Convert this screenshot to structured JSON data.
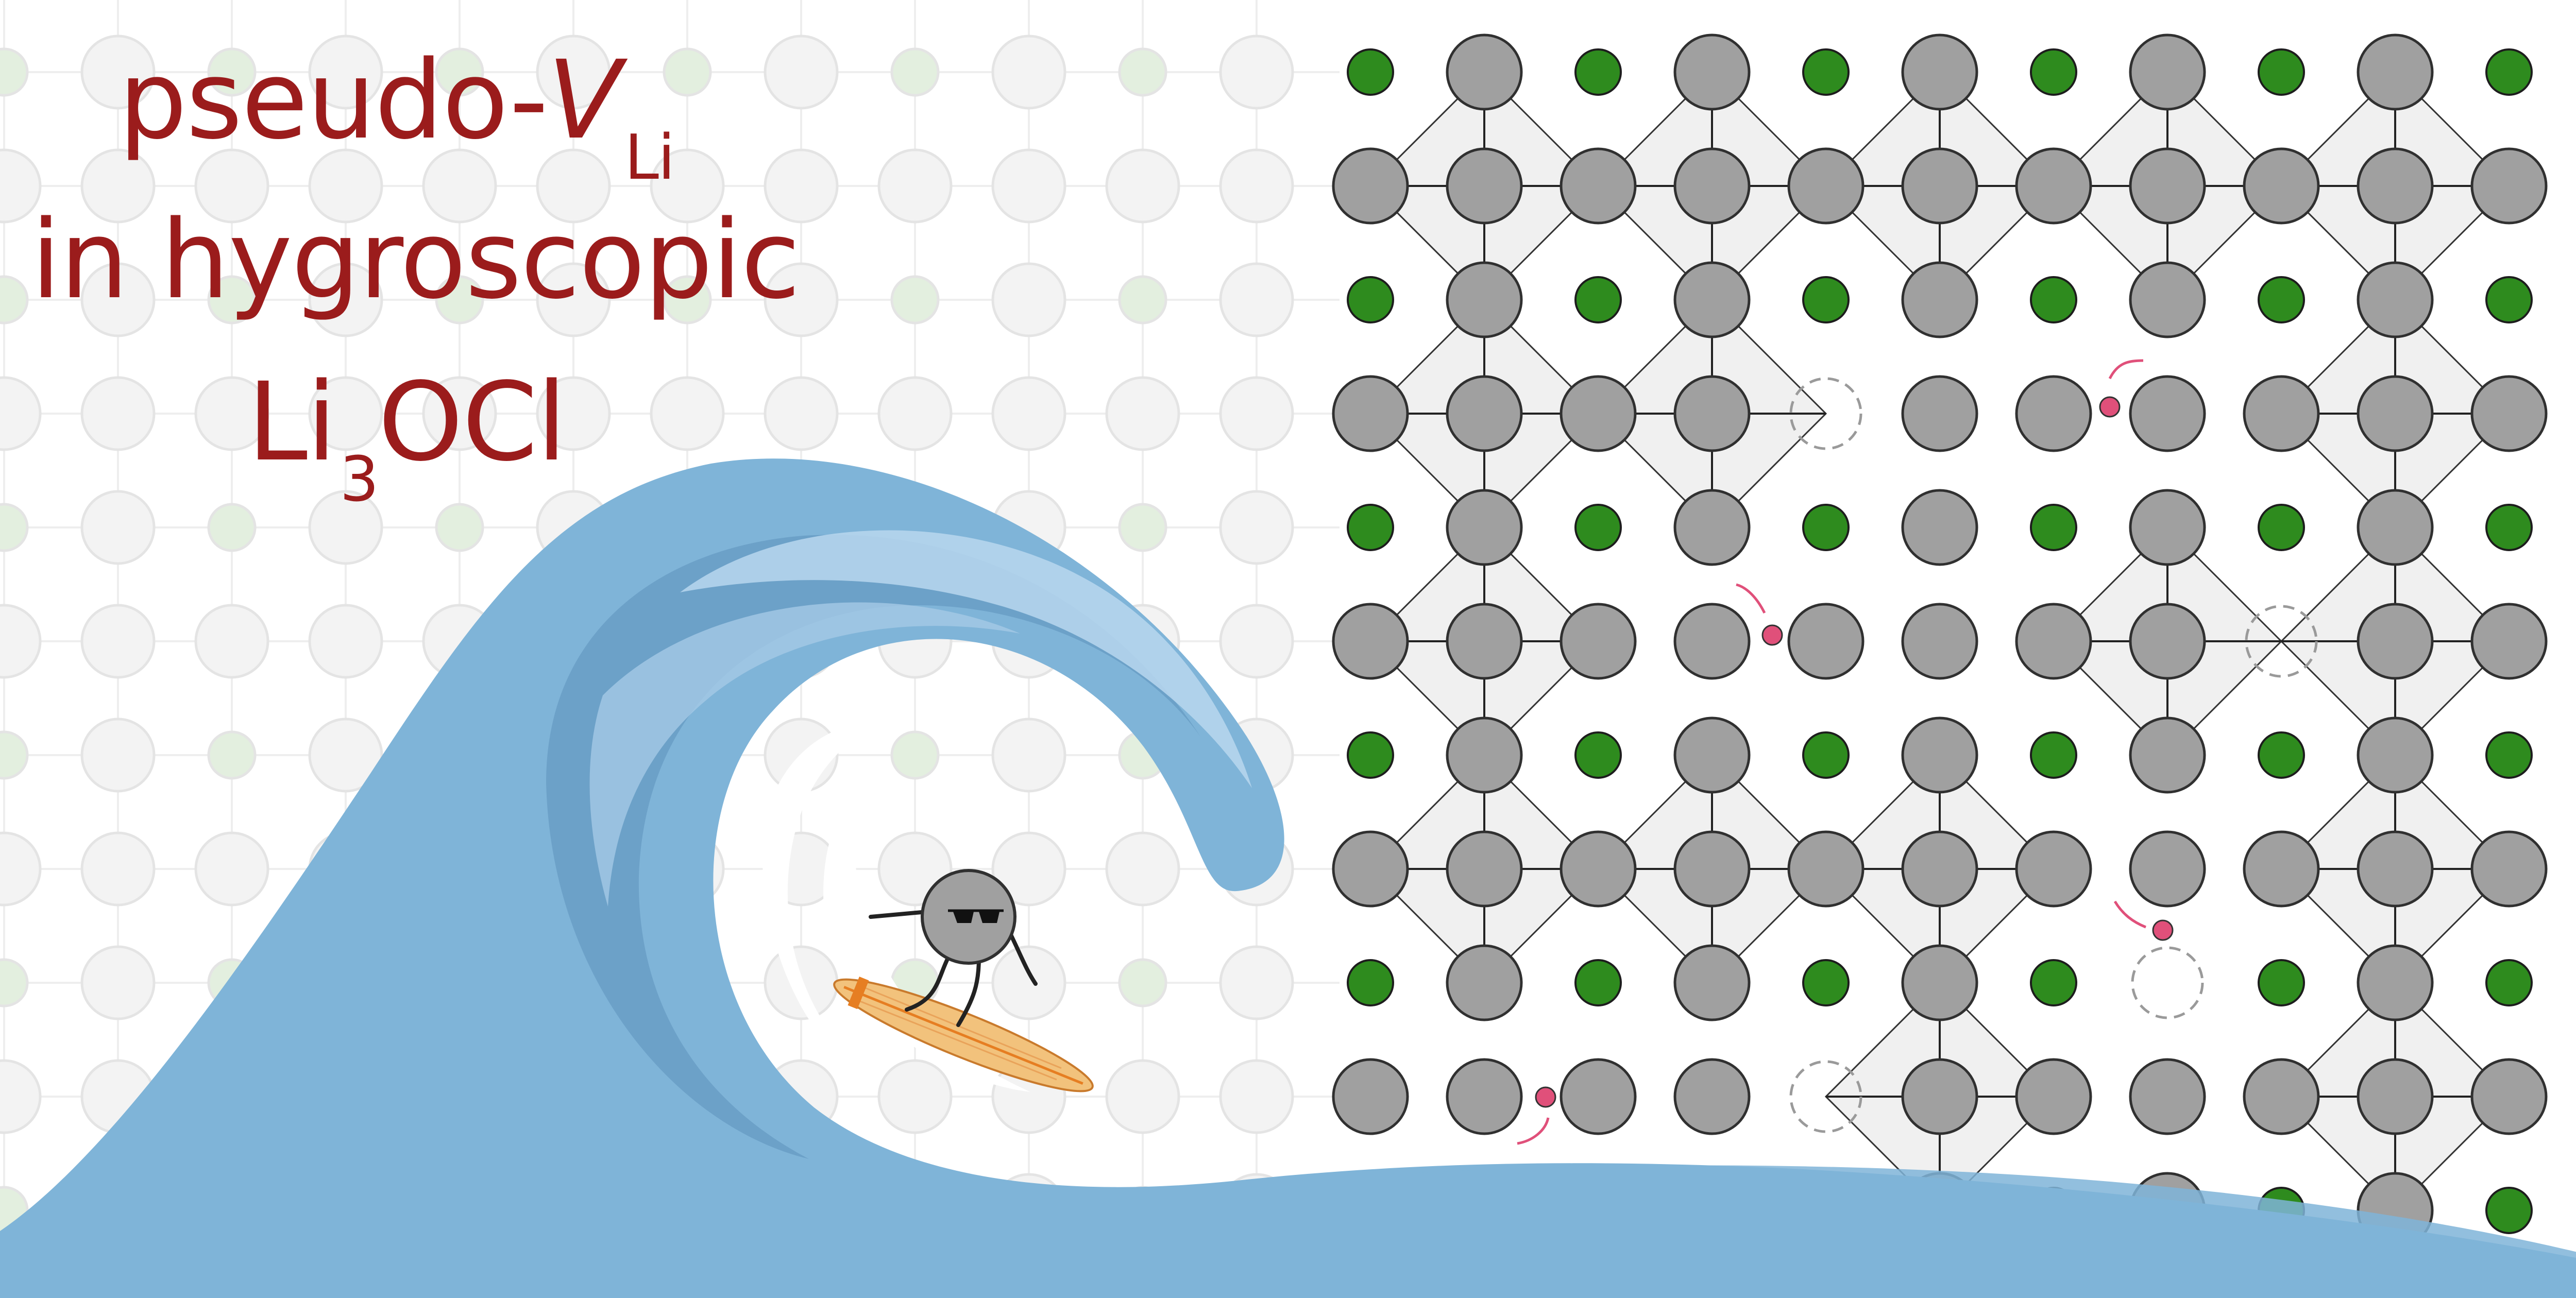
{
  "title": {
    "line1_main": "pseudo-",
    "line1_italic": "V",
    "line1_sub": "Li",
    "line2": "in hygroscopic",
    "line3_a": "Li",
    "line3_sub": "3",
    "line3_b": "OCl"
  },
  "colors": {
    "title": "#9b1c1c",
    "anion_gray": "#a0a0a0",
    "anion_stroke": "#303030",
    "cation_green": "#2e8b1e",
    "hop_pink": "#e0507a",
    "wave_main": "#7fb4d8",
    "wave_dark": "#6a9fc6",
    "wave_light": "#b8d7ee",
    "surfboard": "#f2c27c",
    "faded_grid": "#e6e6e6"
  },
  "lattice": {
    "description_icons": [
      "gray-anion-site",
      "green-cation-site",
      "vacancy-dashed-site",
      "hopping-lithium-ion",
      "hop-arrow"
    ],
    "vacancies": 4
  },
  "surfer": {
    "icon": "sunglasses-ion-surfer-icon",
    "board_icon": "surfboard-icon"
  }
}
